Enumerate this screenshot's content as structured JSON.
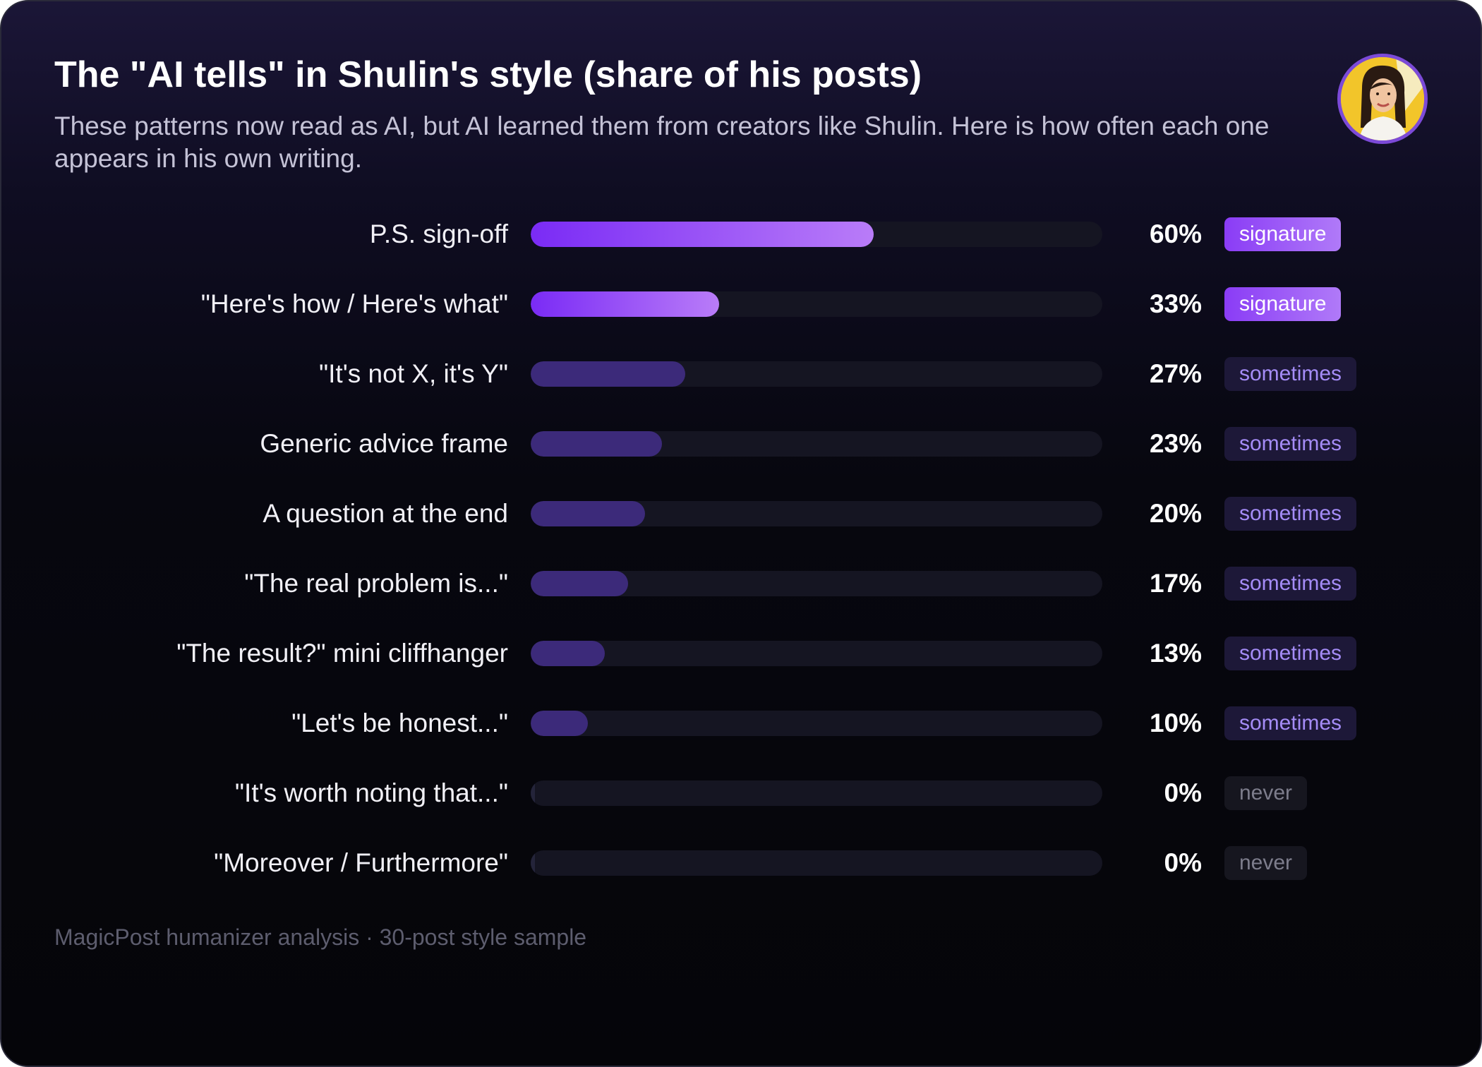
{
  "header": {
    "title": "The \"AI tells\" in Shulin's style (share of his posts)",
    "subtitle": "These patterns now read as AI, but AI learned them from creators like Shulin. Here is how often each one appears in his own writing.",
    "avatar_icon": "person-portrait-avatar"
  },
  "footer": {
    "source": "MagicPost humanizer analysis · 30-post style sample"
  },
  "colors": {
    "signature_bar_start": "#7a2bf5",
    "signature_bar_end": "#b97cf8",
    "sometimes_bar": "#3c2a7a",
    "never_bar": "#24243a",
    "track": "#151522",
    "avatar_ring": "#7c4ad8",
    "avatar_background": "#f2c52a"
  },
  "chart_data": {
    "type": "bar",
    "orientation": "horizontal",
    "title": "The \"AI tells\" in Shulin's style (share of his posts)",
    "subtitle": "These patterns now read as AI, but AI learned them from creators like Shulin. Here is how often each one appears in his own writing.",
    "xlabel": "",
    "ylabel": "",
    "xlim": [
      0,
      100
    ],
    "unit": "%",
    "grid": false,
    "categories": [
      "P.S. sign-off",
      "\"Here's how / Here's what\"",
      "\"It's not X, it's Y\"",
      "Generic advice frame",
      "A question at the end",
      "\"The real problem is...\"",
      "\"The result?\" mini cliffhanger",
      "\"Let's be honest...\"",
      "\"It's worth noting that...\"",
      "\"Moreover / Furthermore\""
    ],
    "values": [
      60,
      33,
      27,
      23,
      20,
      17,
      13,
      10,
      0,
      0
    ],
    "value_labels": [
      "60%",
      "33%",
      "27%",
      "23%",
      "20%",
      "17%",
      "13%",
      "10%",
      "0%",
      "0%"
    ],
    "tags": [
      "signature",
      "signature",
      "sometimes",
      "sometimes",
      "sometimes",
      "sometimes",
      "sometimes",
      "sometimes",
      "never",
      "never"
    ]
  }
}
